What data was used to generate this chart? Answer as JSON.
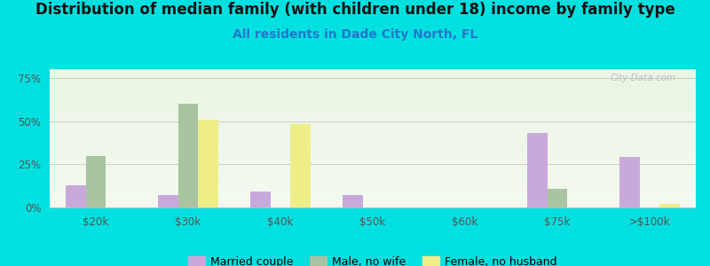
{
  "title": "Distribution of median family (with children under 18) income by family type",
  "subtitle": "All residents in Dade City North, FL",
  "categories": [
    "$20k",
    "$30k",
    "$40k",
    "$50k",
    "$60k",
    "$75k",
    ">$100k"
  ],
  "married_couple": [
    13,
    7,
    9,
    7,
    0,
    43,
    29
  ],
  "male_no_wife": [
    30,
    60,
    0,
    0,
    0,
    11,
    0
  ],
  "female_no_husband": [
    0,
    51,
    48,
    0,
    0,
    0,
    2
  ],
  "married_color": "#c9a8dc",
  "male_color": "#a8c4a0",
  "female_color": "#eeee88",
  "bg_color": "#00e0e0",
  "ylabel_vals": [
    "0%",
    "25%",
    "50%",
    "75%"
  ],
  "ylabel_nums": [
    0,
    25,
    50,
    75
  ],
  "ylim": [
    0,
    80
  ],
  "bar_width": 0.22,
  "title_fontsize": 12,
  "subtitle_fontsize": 10,
  "watermark": "City-Data.com"
}
